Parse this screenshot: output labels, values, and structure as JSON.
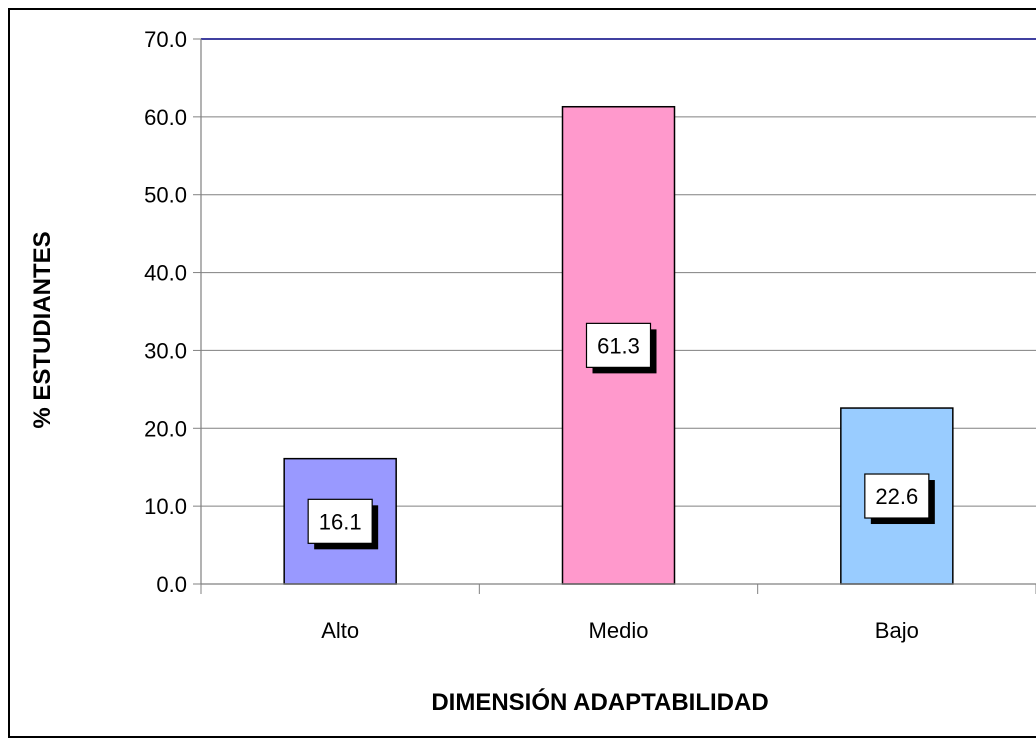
{
  "chart_data": {
    "type": "bar",
    "title": "",
    "xlabel": "DIMENSIÓN ADAPTABILIDAD",
    "ylabel": "% ESTUDIANTES",
    "categories": [
      "Alto",
      "Medio",
      "Bajo"
    ],
    "values": [
      16.1,
      61.3,
      22.6
    ],
    "value_labels": [
      "16.1",
      "61.3",
      "22.6"
    ],
    "ylim": [
      0,
      70
    ],
    "yticks": [
      "0.0",
      "10.0",
      "20.0",
      "30.0",
      "40.0",
      "50.0",
      "60.0",
      "70.0"
    ],
    "ytick_values": [
      0,
      10,
      20,
      30,
      40,
      50,
      60,
      70
    ],
    "grid": true,
    "legend": "none",
    "colors": [
      "#9999ff",
      "#ff99cc",
      "#99ccff"
    ],
    "gridline_color": "#808080",
    "top_line_color": "#000080"
  }
}
